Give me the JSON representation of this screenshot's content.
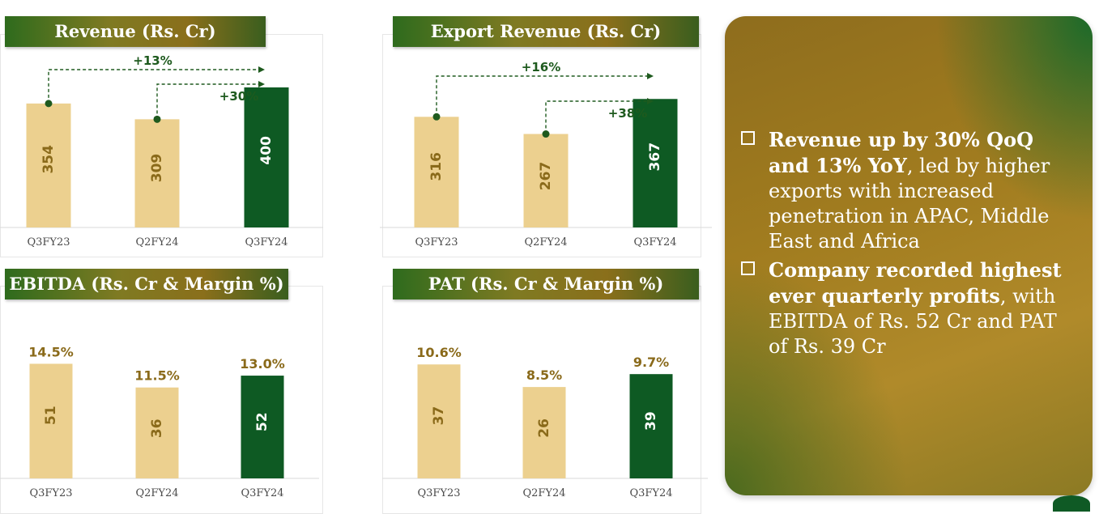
{
  "chart_data": [
    {
      "type": "bar",
      "title": "Revenue (Rs. Cr)",
      "categories": [
        "Q3FY23",
        "Q2FY24",
        "Q3FY24"
      ],
      "values": [
        354,
        309,
        400
      ],
      "ylim": [
        0,
        430
      ],
      "annotations": [
        {
          "from": "Q3FY23",
          "to": "Q3FY24",
          "label": "+13%"
        },
        {
          "from": "Q2FY24",
          "to": "Q3FY24",
          "label": "+30%"
        }
      ],
      "colors": [
        "#ecd08f",
        "#ecd08f",
        "#0e5a23"
      ]
    },
    {
      "type": "bar",
      "title": "Export Revenue (Rs. Cr)",
      "categories": [
        "Q3FY23",
        "Q2FY24",
        "Q3FY24"
      ],
      "values": [
        316,
        267,
        367
      ],
      "ylim": [
        0,
        430
      ],
      "annotations": [
        {
          "from": "Q3FY23",
          "to": "Q3FY24",
          "label": "+16%"
        },
        {
          "from": "Q2FY24",
          "to": "Q3FY24",
          "label": "+38%"
        }
      ],
      "colors": [
        "#ecd08f",
        "#ecd08f",
        "#0e5a23"
      ]
    },
    {
      "type": "bar",
      "title": "EBITDA (Rs. Cr & Margin %)",
      "categories": [
        "Q3FY23",
        "Q2FY24",
        "Q3FY24"
      ],
      "values": [
        51,
        36,
        52
      ],
      "margins": [
        "14.5%",
        "11.5%",
        "13.0%"
      ],
      "margin_values": [
        14.5,
        11.5,
        13.0
      ],
      "ylim": [
        0,
        17
      ],
      "colors": [
        "#ecd08f",
        "#ecd08f",
        "#0e5a23"
      ]
    },
    {
      "type": "bar",
      "title": "PAT (Rs. Cr & Margin %)",
      "categories": [
        "Q3FY23",
        "Q2FY24",
        "Q3FY24"
      ],
      "values": [
        37,
        26,
        39
      ],
      "margins": [
        "10.6%",
        "8.5%",
        "9.7%"
      ],
      "margin_values": [
        10.6,
        8.5,
        9.7
      ],
      "ylim": [
        0,
        12.5
      ],
      "colors": [
        "#ecd08f",
        "#ecd08f",
        "#0e5a23"
      ]
    }
  ],
  "highlights": [
    {
      "bold": "Revenue up by 30% QoQ and 13% YoY",
      "rest": ", led by higher exports with increased penetration in APAC, Middle East and Africa"
    },
    {
      "bold": "Company recorded highest ever quarterly profits",
      "rest": ", with EBITDA of Rs. 52 Cr and PAT of Rs. 39 Cr"
    }
  ],
  "colors": {
    "light_bar": "#ecd08f",
    "dark_bar": "#0e5a23",
    "light_bar_text": "#8a6a1a",
    "growth_text": "#1e5a1e"
  }
}
